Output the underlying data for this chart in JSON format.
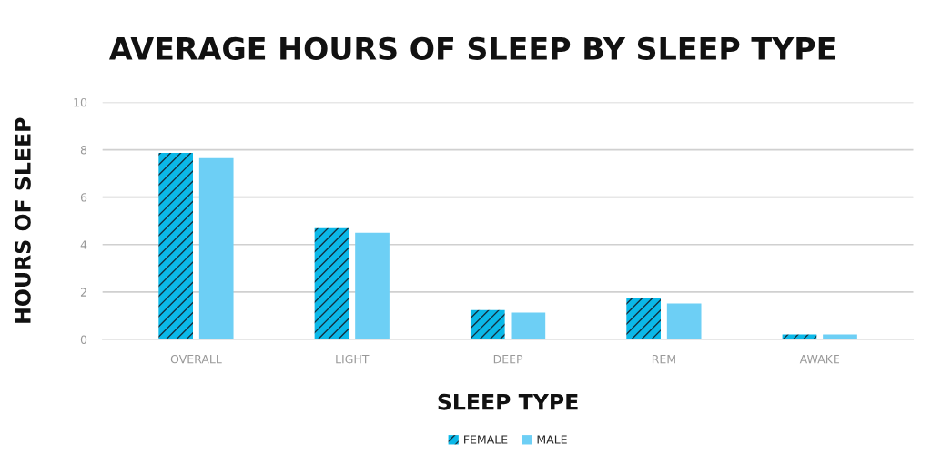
{
  "chart_data": {
    "type": "bar",
    "title": "AVERAGE HOURS OF SLEEP BY SLEEP TYPE",
    "xlabel": "SLEEP TYPE",
    "ylabel": "HOURS OF SLEEP",
    "categories": [
      "OVERALL",
      "LIGHT",
      "DEEP",
      "REM",
      "AWAKE"
    ],
    "series": [
      {
        "name": "FEMALE",
        "color": "#0bb8e8",
        "values": [
          7.87,
          4.69,
          1.24,
          1.76,
          0.21
        ]
      },
      {
        "name": "MALE",
        "color": "#6dcff5",
        "values": [
          7.65,
          4.5,
          1.13,
          1.52,
          0.21
        ]
      }
    ],
    "ylim": [
      0,
      10
    ],
    "yticks": [
      0,
      2,
      4,
      6,
      8,
      10
    ],
    "grid": "y",
    "legend": "bottom"
  }
}
